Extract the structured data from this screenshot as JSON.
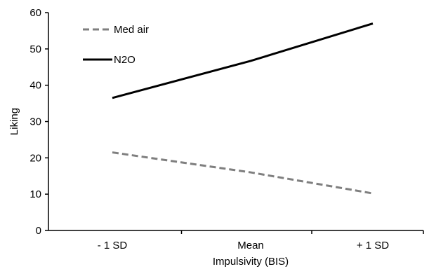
{
  "chart_data": {
    "type": "line",
    "title": "",
    "xlabel": "Impulsivity (BIS)",
    "ylabel": "Liking",
    "categories": [
      "- 1 SD",
      "Mean",
      "+ 1 SD"
    ],
    "ylim": [
      0,
      60
    ],
    "yticks": [
      0,
      10,
      20,
      30,
      40,
      50,
      60
    ],
    "grid": false,
    "legend_position": "top-left",
    "series": [
      {
        "name": "Med air",
        "values": [
          21.5,
          16,
          10.2
        ],
        "color": "#7f7f7f",
        "line_style": "dashed"
      },
      {
        "name": "N2O",
        "values": [
          36.5,
          46.7,
          57
        ],
        "color": "#000000",
        "line_style": "solid"
      }
    ]
  }
}
